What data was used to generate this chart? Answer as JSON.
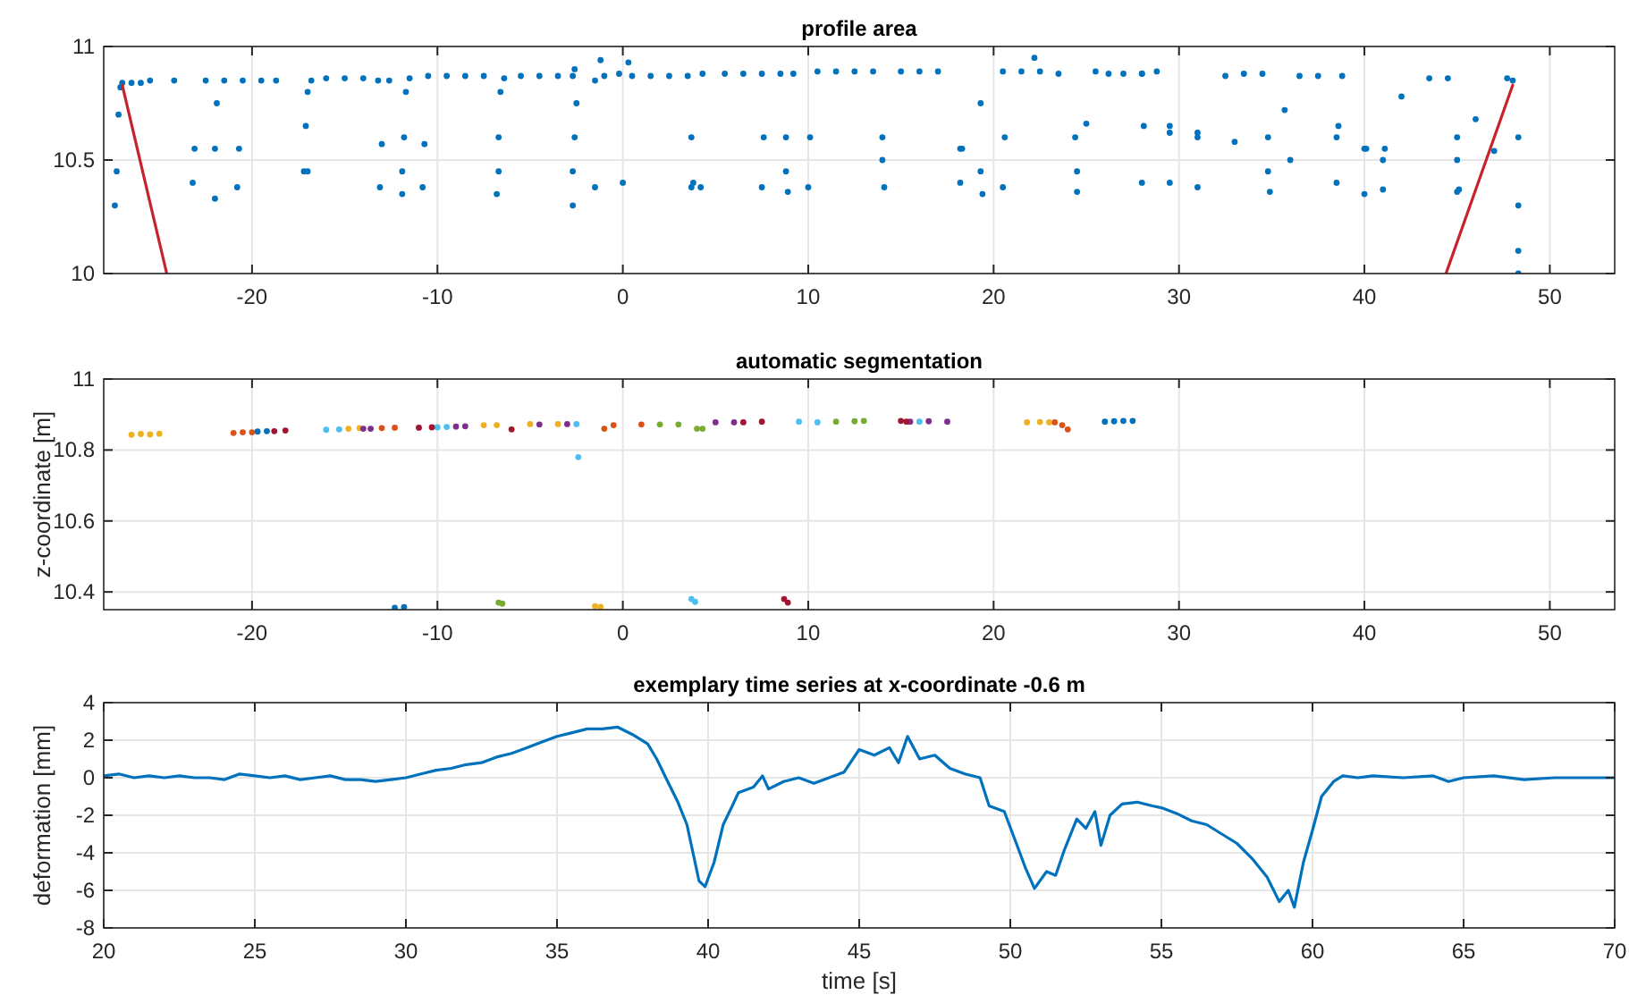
{
  "chart_data": [
    {
      "type": "scatter",
      "title": "profile area",
      "xlim": [
        -28,
        53.5
      ],
      "ylim": [
        10,
        11
      ],
      "xticks": [
        -20,
        -10,
        0,
        10,
        20,
        30,
        40,
        50
      ],
      "yticks": [
        10,
        10.5,
        11
      ],
      "grid": true,
      "marker": "circle",
      "series": [
        {
          "color": "#0072bd",
          "x": [
            -27.4,
            -27.3,
            -27.2,
            -27.1,
            -27,
            -26.5,
            -26,
            -25.5,
            -24.2,
            -22.5,
            -21.5,
            -20.5,
            -19.5,
            -18.7,
            -17.2,
            -17.1,
            -17,
            -16.8,
            -16,
            -15,
            -14,
            -13.2,
            -12.6,
            -11.9,
            -11.8,
            -11.7,
            -11.5,
            -10.5,
            -9.5,
            -8.5,
            -7.5,
            -6.8,
            -6.7,
            -6.6,
            -6.4,
            -5.5,
            -4.5,
            -3.5,
            -2.7,
            -2.6,
            -1.5,
            -1,
            -0.2,
            0.5,
            1.5,
            2.5,
            3.5,
            3.7,
            3.8,
            4.3,
            5.5,
            6.5,
            7.5,
            8.5,
            8.8,
            8.9,
            9.2,
            10.5,
            11.5,
            12.5,
            13.5,
            14,
            14.1,
            15,
            16,
            17,
            18.2,
            19.3,
            19.4,
            20.5,
            21.5,
            22.5,
            23.5,
            24.4,
            24.5,
            25.5,
            26.2,
            27,
            28,
            28.8,
            28,
            29.5,
            31,
            32.5,
            33.5,
            34.5,
            34.8,
            34.9,
            36.5,
            37.5,
            38.8,
            38.5,
            40,
            41,
            43.5,
            44.5,
            45,
            45.1,
            47.7,
            48,
            48.3,
            48.3,
            48.3,
            48.3,
            -23.2,
            -23.1,
            -22,
            -22,
            -21.9,
            -20.8,
            -20.7,
            -17,
            -13.1,
            -13,
            -11.9,
            -10.8,
            -10.7,
            -6.7,
            -2.7,
            -2.7,
            -2.6,
            -1.5,
            0,
            3.7,
            7.5,
            7.6,
            8.8,
            10,
            10.1,
            14,
            18.2,
            18.3,
            19.3,
            20.5,
            20.6,
            24.5,
            28,
            28.1,
            29.5,
            29.5,
            31,
            31,
            34.8,
            38.5,
            38.6,
            40,
            40.1,
            41,
            41.1,
            45,
            45,
            -2.5,
            0.3,
            -1.2,
            4.2,
            22.2,
            25,
            33,
            36,
            35.7,
            42,
            47,
            46
          ],
          "values": [
            10.3,
            10.45,
            10.7,
            10.82,
            10.84,
            10.84,
            10.84,
            10.85,
            10.85,
            10.85,
            10.85,
            10.85,
            10.85,
            10.85,
            10.45,
            10.65,
            10.8,
            10.85,
            10.86,
            10.86,
            10.86,
            10.85,
            10.85,
            10.35,
            10.6,
            10.8,
            10.86,
            10.87,
            10.87,
            10.87,
            10.87,
            10.35,
            10.6,
            10.8,
            10.86,
            10.87,
            10.87,
            10.87,
            10.87,
            10.9,
            10.85,
            10.87,
            10.88,
            10.87,
            10.87,
            10.87,
            10.87,
            10.6,
            10.4,
            10.88,
            10.88,
            10.88,
            10.88,
            10.88,
            10.6,
            10.36,
            10.88,
            10.89,
            10.89,
            10.89,
            10.89,
            10.6,
            10.38,
            10.89,
            10.89,
            10.89,
            10.55,
            10.75,
            10.35,
            10.89,
            10.89,
            10.89,
            10.88,
            10.6,
            10.36,
            10.89,
            10.88,
            10.88,
            10.88,
            10.89,
            10.88,
            10.62,
            10.6,
            10.87,
            10.88,
            10.88,
            10.6,
            10.36,
            10.87,
            10.87,
            10.87,
            10.6,
            10.55,
            10.5,
            10.86,
            10.86,
            10.6,
            10.37,
            10.86,
            10.85,
            10.6,
            10.3,
            10.1,
            10,
            10.4,
            10.55,
            10.33,
            10.55,
            10.75,
            10.38,
            10.55,
            10.45,
            10.38,
            10.57,
            10.45,
            10.38,
            10.57,
            10.45,
            10.3,
            10.45,
            10.6,
            10.38,
            10.4,
            10.38,
            10.38,
            10.6,
            10.45,
            10.38,
            10.6,
            10.5,
            10.4,
            10.55,
            10.45,
            10.38,
            10.6,
            10.45,
            10.4,
            10.65,
            10.4,
            10.65,
            10.38,
            10.62,
            10.45,
            10.4,
            10.65,
            10.35,
            10.55,
            10.37,
            10.55,
            10.5,
            10.36,
            10.75,
            10.93,
            10.94,
            10.38,
            10.95,
            10.66,
            10.58,
            10.5,
            10.72,
            10.78,
            10.54,
            10.68
          ]
        },
        {
          "type": "line",
          "marker": "none",
          "color": "#c8232c",
          "x": [
            -27,
            -24.6
          ],
          "values": [
            10.83,
            10
          ]
        },
        {
          "type": "line",
          "marker": "none",
          "color": "#c8232c",
          "x": [
            44.4,
            48
          ],
          "values": [
            10,
            10.83
          ]
        }
      ]
    },
    {
      "type": "scatter",
      "title": "automatic segmentation",
      "ylabel": "z-coordinate [m]",
      "xlim": [
        -28,
        53.5
      ],
      "ylim": [
        10.35,
        11
      ],
      "xticks": [
        -20,
        -10,
        0,
        10,
        20,
        30,
        40,
        50
      ],
      "yticks": [
        10.4,
        10.6,
        10.8,
        11
      ],
      "grid": true,
      "marker": "circle",
      "series": [
        {
          "color": "#edb120",
          "x": [
            -26.5,
            -26,
            -25.5,
            -25,
            -14.8,
            -14.2,
            -7.5,
            -6.8,
            -5,
            -3.5,
            21.8,
            22.5,
            23,
            -1.5,
            -1.2
          ],
          "values": [
            10.843,
            10.845,
            10.844,
            10.846,
            10.86,
            10.862,
            10.87,
            10.87,
            10.873,
            10.873,
            10.878,
            10.879,
            10.878,
            10.36,
            10.358
          ]
        },
        {
          "color": "#d95319",
          "x": [
            -21,
            -20.5,
            -20,
            -13,
            -12.3,
            -1,
            -0.5,
            1,
            23.3,
            23.7,
            24
          ],
          "values": [
            10.848,
            10.85,
            10.85,
            10.862,
            10.863,
            10.86,
            10.87,
            10.872,
            10.878,
            10.87,
            10.858
          ]
        },
        {
          "color": "#0072bd",
          "x": [
            -19.7,
            -19.2,
            -12.3,
            -11.8,
            26,
            26.5,
            27,
            27.5
          ],
          "values": [
            10.852,
            10.853,
            10.355,
            10.357,
            10.88,
            10.881,
            10.882,
            10.882
          ]
        },
        {
          "color": "#7e2f8e",
          "x": [
            -14,
            -13.6,
            -9,
            -8.5,
            -4.5,
            -3,
            5,
            6,
            15.5,
            16.5,
            17.5
          ],
          "values": [
            10.86,
            10.86,
            10.866,
            10.867,
            10.872,
            10.873,
            10.878,
            10.878,
            10.88,
            10.881,
            10.88
          ]
        },
        {
          "color": "#4dbeee",
          "x": [
            -16,
            -15.3,
            -10,
            -9.5,
            -2.5,
            -2.4,
            9.5,
            10.5,
            3.7,
            3.9,
            16
          ],
          "values": [
            10.857,
            10.858,
            10.864,
            10.865,
            10.873,
            10.78,
            10.88,
            10.878,
            10.38,
            10.372,
            10.88
          ]
        },
        {
          "color": "#77ac30",
          "x": [
            -6.7,
            -6.5,
            4,
            4.3,
            11.5,
            12.5,
            13,
            2,
            3
          ],
          "values": [
            10.37,
            10.367,
            10.86,
            10.86,
            10.88,
            10.881,
            10.882,
            10.872,
            10.872
          ]
        },
        {
          "color": "#a2142f",
          "x": [
            -18.8,
            -18.2,
            -6,
            -11,
            -10.3,
            6.5,
            7.5,
            8.7,
            8.9,
            15,
            15.3
          ],
          "values": [
            10.853,
            10.855,
            10.858,
            10.863,
            10.864,
            10.878,
            10.88,
            10.38,
            10.37,
            10.882,
            10.88
          ]
        }
      ]
    },
    {
      "type": "line",
      "title": "exemplary time series at x-coordinate -0.6 m",
      "xlabel": "time [s]",
      "ylabel": "deformation [mm]",
      "xlim": [
        20,
        70
      ],
      "ylim": [
        -8,
        4
      ],
      "xticks": [
        20,
        25,
        30,
        35,
        40,
        45,
        50,
        55,
        60,
        65,
        70
      ],
      "yticks": [
        -8,
        -6,
        -4,
        -2,
        0,
        2,
        4
      ],
      "grid": true,
      "series": [
        {
          "color": "#0072bd",
          "x": [
            20,
            20.5,
            21,
            21.5,
            22,
            22.5,
            23,
            23.5,
            24,
            24.5,
            25,
            25.5,
            26,
            26.5,
            27,
            27.5,
            28,
            28.5,
            29,
            29.5,
            30,
            30.5,
            31,
            31.5,
            32,
            32.5,
            33,
            33.5,
            34,
            34.5,
            35,
            35.5,
            36,
            36.5,
            37,
            37.5,
            38,
            38.3,
            38.6,
            39,
            39.3,
            39.5,
            39.7,
            39.9,
            40.2,
            40.5,
            40.8,
            41,
            41.5,
            41.8,
            42,
            42.5,
            43,
            43.5,
            44,
            44.5,
            45,
            45.5,
            46,
            46.3,
            46.6,
            47,
            47.5,
            48,
            48.5,
            49,
            49.3,
            49.8,
            50.2,
            50.5,
            50.8,
            51.2,
            51.5,
            51.8,
            52.2,
            52.5,
            52.8,
            53,
            53.3,
            53.7,
            54.2,
            54.7,
            55,
            55.5,
            56,
            56.5,
            57,
            57.5,
            58,
            58.5,
            58.9,
            59.2,
            59.4,
            59.7,
            60,
            60.3,
            60.7,
            61,
            61.5,
            62,
            63,
            64,
            64.5,
            65,
            66,
            67,
            68,
            69,
            70
          ],
          "values": [
            0.1,
            0.2,
            0,
            0.1,
            0,
            0.1,
            0,
            0,
            -0.1,
            0.2,
            0.1,
            0,
            0.1,
            -0.1,
            0,
            0.1,
            -0.1,
            -0.1,
            -0.2,
            -0.1,
            0,
            0.2,
            0.4,
            0.5,
            0.7,
            0.8,
            1.1,
            1.3,
            1.6,
            1.9,
            2.2,
            2.4,
            2.6,
            2.6,
            2.7,
            2.3,
            1.8,
            1,
            0,
            -1.3,
            -2.5,
            -4,
            -5.5,
            -5.8,
            -4.5,
            -2.5,
            -1.5,
            -0.8,
            -0.5,
            0.1,
            -0.6,
            -0.2,
            0,
            -0.3,
            0,
            0.3,
            1.5,
            1.2,
            1.6,
            0.8,
            2.2,
            1,
            1.2,
            0.5,
            0.2,
            0,
            -1.5,
            -1.8,
            -3.5,
            -4.8,
            -5.9,
            -5,
            -5.2,
            -3.8,
            -2.2,
            -2.7,
            -1.8,
            -3.6,
            -2,
            -1.4,
            -1.3,
            -1.5,
            -1.6,
            -1.9,
            -2.3,
            -2.5,
            -3,
            -3.5,
            -4.3,
            -5.3,
            -6.6,
            -6,
            -6.9,
            -4.5,
            -2.8,
            -1,
            -0.2,
            0.1,
            0,
            0.1,
            0,
            0.1,
            -0.2,
            0,
            0.1,
            -0.1,
            0,
            0,
            0
          ]
        }
      ]
    }
  ]
}
